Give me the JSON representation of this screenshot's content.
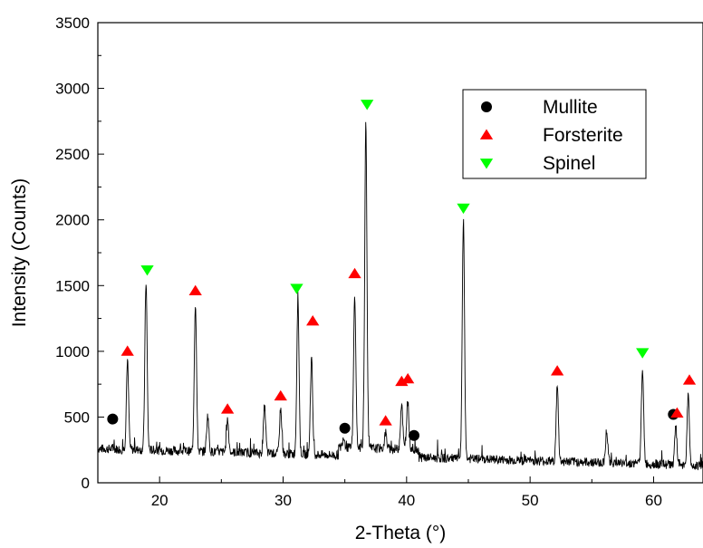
{
  "chart_data": {
    "type": "line",
    "title": "",
    "xlabel": "2-Theta (°)",
    "ylabel": "Intensity (Counts)",
    "xlim": [
      15,
      64
    ],
    "ylim": [
      0,
      3500
    ],
    "x_ticks": [
      20,
      30,
      40,
      50,
      60
    ],
    "y_ticks": [
      0,
      500,
      1000,
      1500,
      2000,
      2500,
      3000,
      3500
    ],
    "x_tick_labels": [
      "20",
      "30",
      "40",
      "50",
      "60"
    ],
    "y_tick_labels": [
      "0",
      "500",
      "1000",
      "1500",
      "2000",
      "2500",
      "3000",
      "3500"
    ],
    "grid": false,
    "legend_position": "top-right",
    "baseline": 260,
    "peaks": [
      {
        "x": 17.4,
        "y": 930
      },
      {
        "x": 18.9,
        "y": 1530
      },
      {
        "x": 22.9,
        "y": 1370
      },
      {
        "x": 23.9,
        "y": 510
      },
      {
        "x": 25.5,
        "y": 480
      },
      {
        "x": 28.5,
        "y": 580
      },
      {
        "x": 29.8,
        "y": 560
      },
      {
        "x": 31.2,
        "y": 1380
      },
      {
        "x": 32.3,
        "y": 950
      },
      {
        "x": 34.9,
        "y": 350
      },
      {
        "x": 35.8,
        "y": 1420
      },
      {
        "x": 36.7,
        "y": 2760
      },
      {
        "x": 38.3,
        "y": 380
      },
      {
        "x": 39.6,
        "y": 610
      },
      {
        "x": 40.1,
        "y": 620
      },
      {
        "x": 44.6,
        "y": 2000
      },
      {
        "x": 52.2,
        "y": 730
      },
      {
        "x": 56.2,
        "y": 400
      },
      {
        "x": 59.1,
        "y": 880
      },
      {
        "x": 61.8,
        "y": 420
      },
      {
        "x": 62.8,
        "y": 670
      }
    ],
    "series": [
      {
        "name": "Mullite",
        "marker": "circle",
        "color": "#000000",
        "points": [
          {
            "x": 16.2,
            "y": 485
          },
          {
            "x": 35.0,
            "y": 415
          },
          {
            "x": 40.6,
            "y": 360
          },
          {
            "x": 61.6,
            "y": 520
          }
        ]
      },
      {
        "name": "Forsterite",
        "marker": "triangle-up",
        "color": "#ff0000",
        "points": [
          {
            "x": 17.4,
            "y": 1000
          },
          {
            "x": 22.9,
            "y": 1460
          },
          {
            "x": 25.5,
            "y": 560
          },
          {
            "x": 29.8,
            "y": 660
          },
          {
            "x": 32.4,
            "y": 1230
          },
          {
            "x": 35.8,
            "y": 1590
          },
          {
            "x": 38.3,
            "y": 470
          },
          {
            "x": 39.6,
            "y": 770
          },
          {
            "x": 40.1,
            "y": 790
          },
          {
            "x": 52.2,
            "y": 850
          },
          {
            "x": 61.9,
            "y": 530
          },
          {
            "x": 62.9,
            "y": 780
          }
        ]
      },
      {
        "name": "Spinel",
        "marker": "triangle-down",
        "color": "#00ff00",
        "points": [
          {
            "x": 19.0,
            "y": 1620
          },
          {
            "x": 31.1,
            "y": 1480
          },
          {
            "x": 36.8,
            "y": 2880
          },
          {
            "x": 44.6,
            "y": 2090
          },
          {
            "x": 59.1,
            "y": 990
          }
        ]
      }
    ]
  }
}
